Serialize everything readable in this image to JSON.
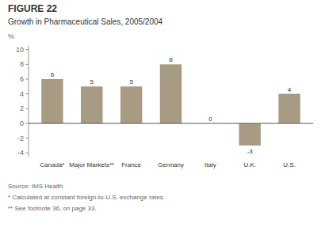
{
  "chart_data": {
    "type": "bar",
    "title": "FIGURE 22",
    "subtitle": "Growth in Pharmaceutical Sales, 2005/2004",
    "ylabel": "%",
    "categories": [
      "Canada*",
      "Major Markets**",
      "France",
      "Germany",
      "Italy",
      "U.K.",
      "U.S."
    ],
    "values": [
      6,
      5,
      5,
      8,
      0,
      -3,
      4
    ],
    "color": "#a89b84",
    "ylim": [
      -4.5,
      10.5
    ],
    "yticks": [
      -4,
      -2,
      0,
      2,
      4,
      6,
      8,
      10
    ],
    "grid": false,
    "data_labels": true,
    "annotations": [
      "Source: IMS Health",
      "* Calculated at constant foreign-to-U.S. exchange rates.",
      "** See footnote 36, on page 33."
    ]
  }
}
